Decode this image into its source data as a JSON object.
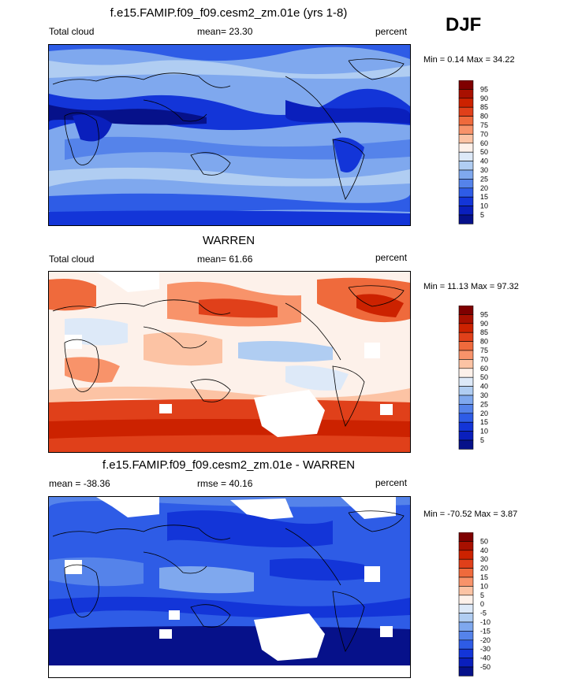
{
  "season": "DJF",
  "panels": [
    {
      "title": "f.e15.FAMIP.f09_f09.cesm2_zm.01e (yrs 1-8)",
      "left_label": "Total cloud",
      "center_label": "mean=  23.30",
      "right_label": "percent",
      "minmax": "Min =   0.14 Max =  34.22",
      "colorbar_ticks": [
        "95",
        "90",
        "85",
        "80",
        "75",
        "70",
        "60",
        "50",
        "40",
        "30",
        "25",
        "20",
        "15",
        "10",
        "5"
      ]
    },
    {
      "title": "WARREN",
      "left_label": "Total cloud",
      "center_label": "mean=  61.66",
      "right_label": "percent",
      "minmax": "Min =  11.13 Max =  97.32",
      "colorbar_ticks": [
        "95",
        "90",
        "85",
        "80",
        "75",
        "70",
        "60",
        "50",
        "40",
        "30",
        "25",
        "20",
        "15",
        "10",
        "5"
      ]
    },
    {
      "title": "f.e15.FAMIP.f09_f09.cesm2_zm.01e - WARREN",
      "left_label": "mean = -38.36",
      "center_label": "rmse =  40.16",
      "right_label": "percent",
      "minmax": "Min = -70.52 Max =   3.87",
      "colorbar_ticks": [
        "50",
        "40",
        "30",
        "20",
        "15",
        "10",
        "5",
        "0",
        "-5",
        "-10",
        "-15",
        "-20",
        "-30",
        "-40",
        "-50"
      ]
    }
  ],
  "colorbar_colors": [
    "#7f0000",
    "#a81000",
    "#cc2200",
    "#e0401a",
    "#ef6a3c",
    "#f8936a",
    "#fcc3a4",
    "#fdf1ea",
    "#dde9f8",
    "#b0cdf2",
    "#7fa8ee",
    "#5583ea",
    "#2e5ce6",
    "#1335d8",
    "#0a1fbc",
    "#06118a"
  ]
}
